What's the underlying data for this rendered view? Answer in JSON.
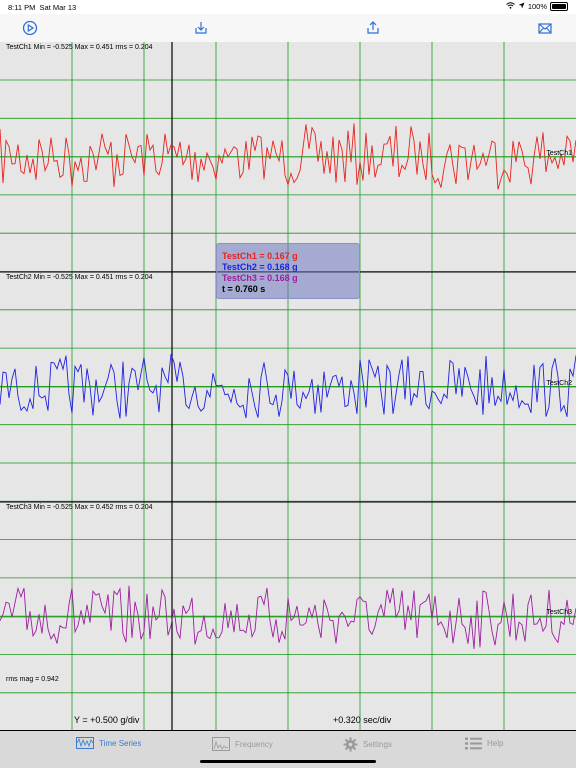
{
  "status": {
    "time": "8:11 PM",
    "date": "Sat Mar 13",
    "battery": "100%"
  },
  "toolbar": {
    "icons": [
      "play-icon",
      "import-icon",
      "share-icon",
      "mail-icon"
    ]
  },
  "channels": [
    {
      "label": "TestCh1 Min = -0.525 Max = 0.451 rms = 0.204",
      "tag": "TestCh1",
      "color": "#e8231f"
    },
    {
      "label": "TestCh2 Min = -0.525 Max = 0.451 rms = 0.204",
      "tag": "TestCh2",
      "color": "#1f22e0"
    },
    {
      "label": "TestCh3 Min = -0.525 Max = 0.452 rms = 0.204",
      "tag": "TestCh3",
      "color": "#9d1fa0"
    }
  ],
  "rms_mag": "rms mag = 0.942",
  "y_scale": "Y = +0.500 g/div",
  "x_scale": "+0.320 sec/div",
  "cursor": {
    "ch1": "TestCh1 = 0.167 g",
    "ch2": "TestCh2 = 0.168 g",
    "ch3": "TestCh3 = 0.168 g",
    "t": "t = 0.760 s"
  },
  "tabs": [
    {
      "label": "Time Series",
      "icon": "waveform-icon",
      "active": true
    },
    {
      "label": "Frequency",
      "icon": "spectrum-icon",
      "active": false
    },
    {
      "label": "Settings",
      "icon": "gear-icon",
      "active": false
    },
    {
      "label": "Help",
      "icon": "list-icon",
      "active": false
    }
  ]
}
